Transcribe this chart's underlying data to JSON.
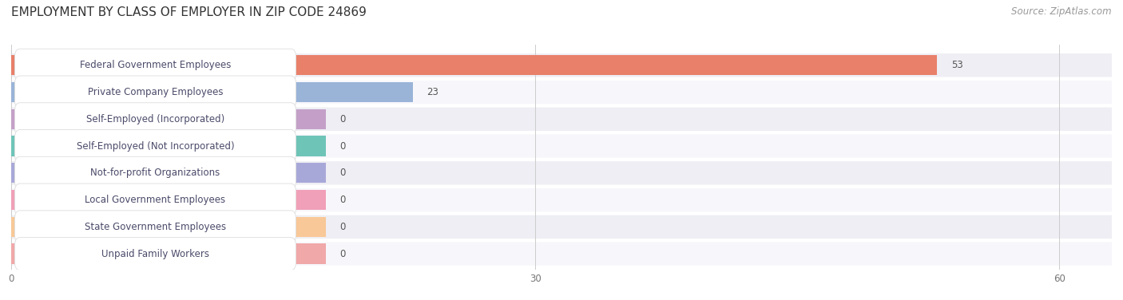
{
  "title": "EMPLOYMENT BY CLASS OF EMPLOYER IN ZIP CODE 24869",
  "source": "Source: ZipAtlas.com",
  "categories": [
    "Federal Government Employees",
    "Private Company Employees",
    "Self-Employed (Incorporated)",
    "Self-Employed (Not Incorporated)",
    "Not-for-profit Organizations",
    "Local Government Employees",
    "State Government Employees",
    "Unpaid Family Workers"
  ],
  "values": [
    53,
    23,
    0,
    0,
    0,
    0,
    0,
    0
  ],
  "bar_colors": [
    "#e8806a",
    "#9ab4d8",
    "#c4a0c8",
    "#6fc4b8",
    "#a8a8d8",
    "#f0a0b8",
    "#f8c898",
    "#f0a8a8"
  ],
  "row_bg_even": "#eeeef4",
  "row_bg_odd": "#f7f7fb",
  "xlim_max": 63,
  "xticks": [
    0,
    30,
    60
  ],
  "title_fontsize": 11,
  "source_fontsize": 8.5,
  "label_fontsize": 8.5,
  "value_fontsize": 8.5,
  "background_color": "#ffffff",
  "value_label_color_inside": "#ffffff",
  "value_label_color_outside": "#555555",
  "text_color": "#4a4a6a"
}
